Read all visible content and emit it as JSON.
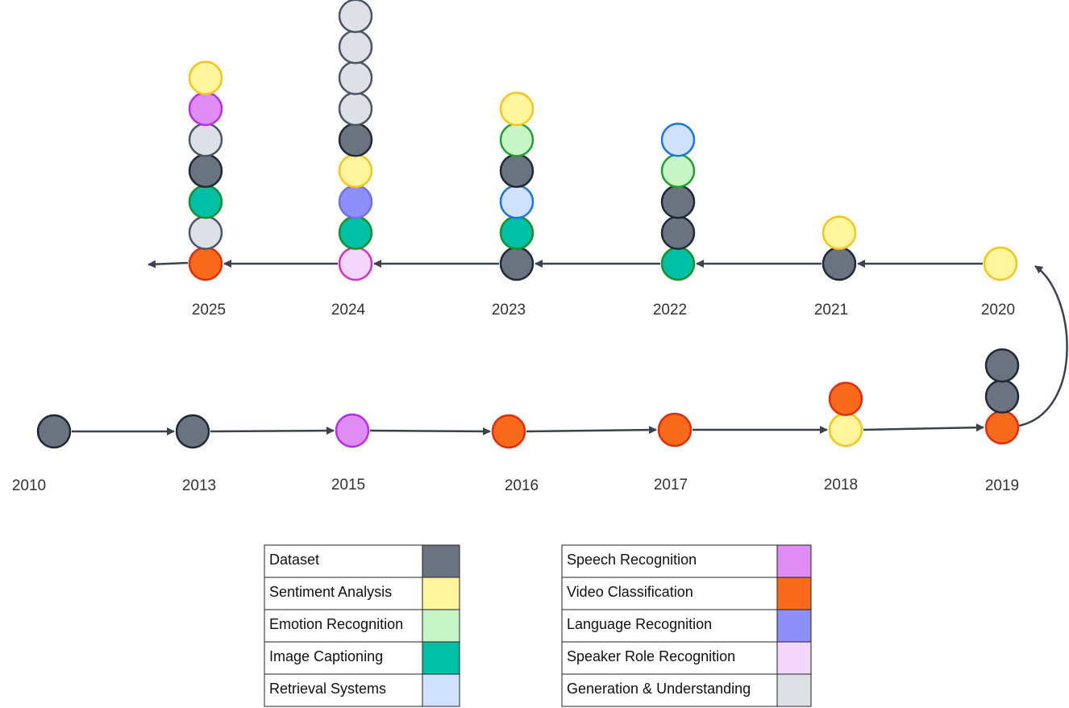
{
  "timeline": {
    "years": [
      {
        "label": "2010",
        "stack": [
          0
        ]
      },
      {
        "label": "2013",
        "stack": [
          0
        ]
      },
      {
        "label": "2015",
        "stack": [
          5
        ]
      },
      {
        "label": "2016",
        "stack": [
          6
        ]
      },
      {
        "label": "2017",
        "stack": [
          6
        ]
      },
      {
        "label": "2018",
        "stack": [
          1,
          6
        ]
      },
      {
        "label": "2019",
        "stack": [
          6,
          0,
          0
        ]
      },
      {
        "label": "2020",
        "stack": [
          1
        ]
      },
      {
        "label": "2021",
        "stack": [
          0,
          1
        ]
      },
      {
        "label": "2022",
        "stack": [
          3,
          0,
          0,
          2,
          4
        ]
      },
      {
        "label": "2023",
        "stack": [
          0,
          3,
          4,
          0,
          2,
          1
        ]
      },
      {
        "label": "2024",
        "stack": [
          8,
          3,
          7,
          1,
          0,
          9,
          9,
          9,
          9
        ]
      },
      {
        "label": "2025",
        "stack": [
          6,
          9,
          3,
          0,
          9,
          5,
          1
        ]
      }
    ]
  },
  "legend": [
    {
      "label": "Dataset",
      "fill": "#6b7280",
      "stroke": "#1f2937"
    },
    {
      "label": "Sentiment Analysis",
      "fill": "#fff59d",
      "stroke": "#f5c518"
    },
    {
      "label": "Emotion Recognition",
      "fill": "#c6f6c8",
      "stroke": "#22a02f"
    },
    {
      "label": "Image Captioning",
      "fill": "#00bfa5",
      "stroke": "#1a8f2a"
    },
    {
      "label": "Retrieval Systems",
      "fill": "#cfe2ff",
      "stroke": "#1a73e8"
    },
    {
      "label": "Speech Recognition",
      "fill": "#e08cf5",
      "stroke": "#b72ee8"
    },
    {
      "label": "Video Classification",
      "fill": "#f96a1b",
      "stroke": "#e02d10"
    },
    {
      "label": "Language Recognition",
      "fill": "#8f8ff9",
      "stroke": "#7070e0"
    },
    {
      "label": "Speaker Role Recognition",
      "fill": "#f3d6fb",
      "stroke": "#d62ecc"
    },
    {
      "label": "Generation & Understanding",
      "fill": "#dde0e4",
      "stroke": "#4b5563"
    }
  ]
}
